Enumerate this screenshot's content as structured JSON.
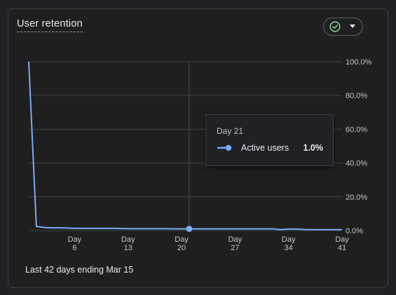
{
  "card": {
    "title": "User retention",
    "footer": "Last 42 days ending Mar 15",
    "status_icon": "check-circle-icon",
    "dropdown_icon": "caret-down-icon"
  },
  "colors": {
    "series": "#7baaf7",
    "status_green": "#81c995",
    "grid": "#3c4043"
  },
  "tooltip": {
    "day_label": "Day 21",
    "series_name": "Active users",
    "value_text": "1.0%"
  },
  "chart_data": {
    "type": "line",
    "title": "",
    "xlabel": "",
    "ylabel": "",
    "x_range": [
      0,
      41
    ],
    "ylim": [
      0,
      100
    ],
    "y_ticks": [
      0,
      20,
      40,
      60,
      80,
      100
    ],
    "y_tick_labels": [
      "0.0%",
      "20.0%",
      "40.0%",
      "60.0%",
      "80.0%",
      "100.0%"
    ],
    "x_ticks": [
      6,
      13,
      20,
      27,
      34,
      41
    ],
    "x_tick_labels": [
      "Day\n6",
      "Day\n13",
      "Day\n20",
      "Day\n27",
      "Day\n34",
      "Day\n41"
    ],
    "grid": true,
    "y_axis_position": "right",
    "hover_x": 21,
    "series": [
      {
        "name": "Active users",
        "x": [
          0,
          1,
          2,
          3,
          4,
          5,
          6,
          7,
          8,
          9,
          10,
          11,
          12,
          13,
          14,
          15,
          16,
          17,
          18,
          19,
          20,
          21,
          22,
          23,
          24,
          25,
          26,
          27,
          28,
          29,
          30,
          31,
          32,
          33,
          34,
          35,
          36,
          37,
          38,
          39,
          40,
          41
        ],
        "values": [
          100,
          2.5,
          1.8,
          1.6,
          1.6,
          1.5,
          1.3,
          1.3,
          1.3,
          1.3,
          1.3,
          1.3,
          1.2,
          1.1,
          1.1,
          1.1,
          1.1,
          1.1,
          1.1,
          1.0,
          1.0,
          1.0,
          1.0,
          1.0,
          1.0,
          1.0,
          1.0,
          1.0,
          1.0,
          1.0,
          1.0,
          1.0,
          1.0,
          0.5,
          0.9,
          0.9,
          0.6,
          0.5,
          0.5,
          0.5,
          0.5,
          0.5
        ]
      }
    ]
  }
}
